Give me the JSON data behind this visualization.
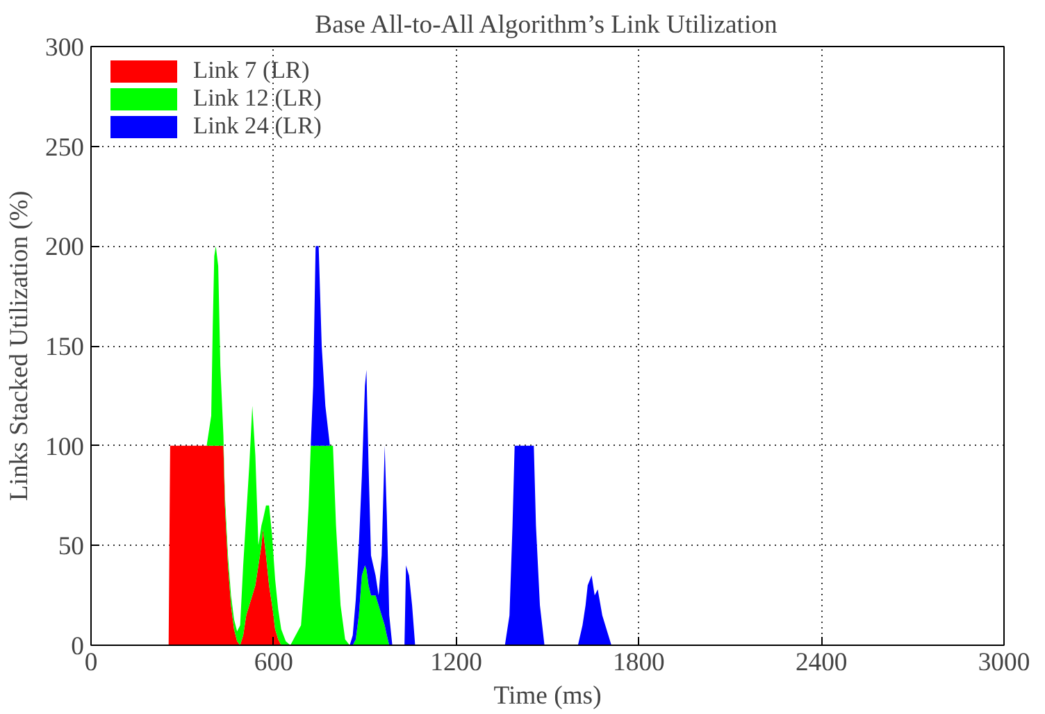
{
  "chart_data": {
    "type": "area",
    "stacked": true,
    "title": "Base All-to-All Algorithm’s Link Utilization",
    "xlabel": "Time (ms)",
    "ylabel": "Links Stacked Utilization (%)",
    "x": [
      255,
      260,
      280,
      300,
      320,
      340,
      360,
      380,
      395,
      400,
      405,
      410,
      418,
      425,
      435,
      440,
      450,
      460,
      470,
      480,
      490,
      500,
      510,
      520,
      530,
      540,
      550,
      560,
      565,
      575,
      585,
      595,
      605,
      615,
      625,
      640,
      655,
      690,
      705,
      715,
      722,
      730,
      738,
      748,
      758,
      770,
      785,
      795,
      805,
      820,
      835,
      850,
      860,
      870,
      880,
      890,
      900,
      905,
      912,
      920,
      935,
      945,
      955,
      965,
      972,
      980,
      990,
      1030,
      1035,
      1045,
      1055,
      1065,
      1360,
      1375,
      1385,
      1392,
      1455,
      1462,
      1475,
      1490,
      1600,
      1615,
      1625,
      1632,
      1645,
      1655,
      1665,
      1680,
      1700,
      1710
    ],
    "series": [
      {
        "name": "Link 7 (LR)",
        "color": "#ff0000",
        "values": [
          0,
          100,
          100,
          100,
          100,
          100,
          100,
          100,
          100,
          100,
          100,
          100,
          100,
          100,
          100,
          70,
          40,
          20,
          8,
          2,
          0,
          5,
          15,
          20,
          25,
          30,
          40,
          50,
          58,
          45,
          30,
          20,
          8,
          3,
          0,
          null,
          null,
          null,
          null,
          null,
          null,
          null,
          null,
          null,
          null,
          null,
          null,
          null,
          null,
          null,
          null,
          null,
          null,
          null,
          null,
          null,
          null,
          null,
          null,
          null,
          null,
          null,
          null,
          null,
          null,
          null,
          null,
          null,
          null,
          null,
          null,
          null,
          null,
          null,
          null,
          null,
          null,
          null,
          null,
          null,
          null,
          null,
          null,
          null,
          null,
          null,
          null,
          null,
          null,
          null
        ]
      },
      {
        "name": "Link 12 (LR)",
        "color": "#00ff00",
        "values": [
          null,
          null,
          null,
          null,
          null,
          null,
          null,
          0,
          15,
          60,
          95,
          100,
          90,
          40,
          5,
          5,
          5,
          5,
          5,
          5,
          10,
          35,
          50,
          70,
          95,
          65,
          10,
          10,
          5,
          25,
          40,
          35,
          25,
          15,
          8,
          2,
          0,
          10,
          40,
          70,
          100,
          100,
          100,
          100,
          100,
          100,
          100,
          100,
          60,
          20,
          3,
          0,
          0,
          3,
          15,
          35,
          40,
          38,
          30,
          25,
          25,
          20,
          15,
          10,
          5,
          0,
          null,
          null,
          null,
          null,
          null,
          null,
          null,
          null,
          null,
          null,
          null,
          null,
          null,
          null,
          null,
          null,
          null,
          null,
          null,
          null,
          null,
          null,
          null,
          null
        ]
      },
      {
        "name": "Link 24 (LR)",
        "color": "#0000ff",
        "values": [
          null,
          null,
          null,
          null,
          null,
          null,
          null,
          null,
          null,
          null,
          null,
          null,
          null,
          null,
          null,
          null,
          null,
          null,
          null,
          null,
          null,
          null,
          null,
          null,
          null,
          null,
          null,
          null,
          null,
          null,
          null,
          null,
          null,
          null,
          null,
          null,
          null,
          null,
          null,
          null,
          0,
          30,
          100,
          100,
          50,
          20,
          0,
          null,
          null,
          null,
          null,
          0,
          5,
          20,
          35,
          50,
          90,
          100,
          60,
          20,
          10,
          5,
          30,
          90,
          60,
          15,
          0,
          0,
          40,
          35,
          20,
          0,
          0,
          15,
          60,
          100,
          100,
          60,
          20,
          0,
          0,
          10,
          20,
          30,
          35,
          25,
          28,
          15,
          5,
          0
        ]
      }
    ],
    "xlim": [
      0,
      3000
    ],
    "xticks": [
      0,
      600,
      1200,
      1800,
      2400,
      3000
    ],
    "ylim": [
      0,
      300
    ],
    "yticks": [
      0,
      50,
      100,
      150,
      200,
      250,
      300
    ],
    "grid": true,
    "legend": "top left"
  }
}
